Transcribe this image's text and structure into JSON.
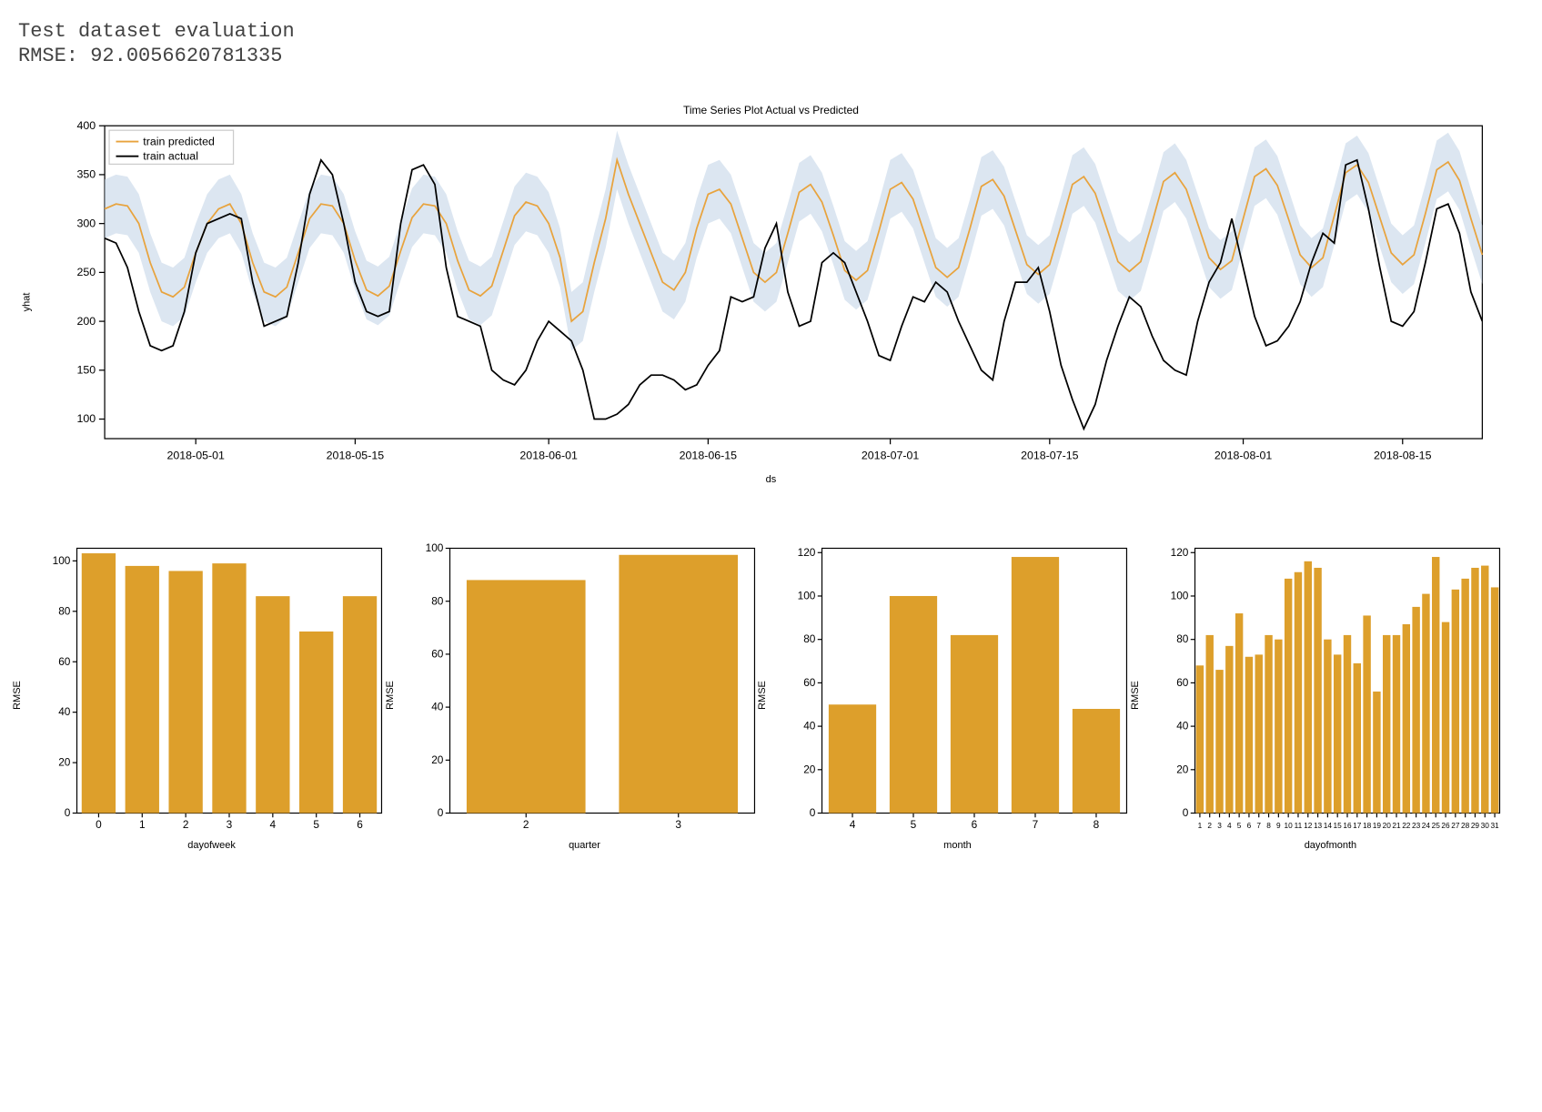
{
  "header": {
    "line1": "Test dataset evaluation",
    "line2": "RMSE: 92.0056620781335",
    "fontsize": 22,
    "color": "#424242"
  },
  "colors": {
    "predicted_line": "#e8a33d",
    "actual_line": "#000000",
    "confidence_fill": "#c5d6e8",
    "confidence_opacity": 0.6,
    "bar_fill": "#dd9f2b",
    "plot_border": "#000000",
    "tick_color": "#000000",
    "background": "#ffffff",
    "legend_border": "#cccccc",
    "legend_bg": "#ffffff"
  },
  "fonts": {
    "title_size": 12,
    "axis_label_size": 11,
    "tick_size": 10,
    "legend_size": 10,
    "axis_weight": "normal"
  },
  "main_chart": {
    "type": "line",
    "title": "Time Series Plot Actual vs Predicted",
    "xlabel": "ds",
    "ylabel": "yhat",
    "ylim": [
      80,
      400
    ],
    "ytick_step": 50,
    "yticks": [
      100,
      150,
      200,
      250,
      300,
      350,
      400
    ],
    "xtick_labels": [
      "2018-05-01",
      "2018-05-15",
      "2018-06-01",
      "2018-06-15",
      "2018-07-01",
      "2018-07-15",
      "2018-08-01",
      "2018-08-15"
    ],
    "xtick_positions": [
      8,
      22,
      39,
      53,
      69,
      83,
      100,
      114
    ],
    "n_points": 122,
    "legend": {
      "items": [
        "train predicted",
        "train actual"
      ],
      "position": "upper-left"
    },
    "predicted": [
      315,
      320,
      318,
      300,
      260,
      230,
      225,
      235,
      270,
      300,
      315,
      320,
      300,
      260,
      230,
      225,
      235,
      270,
      305,
      320,
      318,
      300,
      262,
      232,
      226,
      236,
      272,
      306,
      320,
      318,
      300,
      262,
      232,
      226,
      236,
      272,
      308,
      322,
      318,
      300,
      265,
      200,
      210,
      260,
      305,
      365,
      330,
      300,
      270,
      240,
      232,
      250,
      295,
      330,
      335,
      320,
      285,
      250,
      240,
      250,
      290,
      332,
      340,
      322,
      288,
      252,
      242,
      252,
      292,
      335,
      342,
      325,
      290,
      255,
      245,
      255,
      295,
      338,
      345,
      328,
      293,
      258,
      248,
      258,
      298,
      340,
      348,
      331,
      296,
      261,
      251,
      261,
      301,
      343,
      352,
      335,
      300,
      265,
      253,
      262,
      305,
      348,
      356,
      339,
      304,
      268,
      255,
      265,
      308,
      352,
      360,
      342,
      306,
      270,
      258,
      268,
      310,
      355,
      363,
      344,
      305,
      268
    ],
    "conf_upper": [
      345,
      350,
      348,
      330,
      290,
      260,
      255,
      265,
      300,
      330,
      345,
      350,
      330,
      290,
      260,
      255,
      265,
      300,
      335,
      350,
      348,
      330,
      292,
      262,
      256,
      266,
      302,
      336,
      350,
      348,
      330,
      292,
      262,
      256,
      266,
      302,
      338,
      352,
      348,
      332,
      295,
      230,
      240,
      290,
      335,
      395,
      360,
      330,
      300,
      270,
      262,
      280,
      325,
      360,
      365,
      350,
      315,
      280,
      270,
      280,
      320,
      362,
      370,
      352,
      318,
      282,
      272,
      282,
      322,
      365,
      372,
      355,
      320,
      285,
      275,
      285,
      325,
      368,
      375,
      358,
      323,
      288,
      278,
      288,
      328,
      370,
      378,
      361,
      326,
      291,
      281,
      291,
      331,
      373,
      382,
      365,
      330,
      295,
      283,
      292,
      335,
      378,
      386,
      369,
      334,
      298,
      285,
      295,
      338,
      382,
      390,
      372,
      336,
      300,
      288,
      298,
      340,
      385,
      393,
      374,
      335,
      298
    ],
    "conf_lower": [
      285,
      290,
      288,
      270,
      230,
      200,
      195,
      205,
      240,
      270,
      285,
      290,
      270,
      230,
      200,
      195,
      205,
      240,
      275,
      290,
      288,
      270,
      232,
      202,
      196,
      206,
      242,
      276,
      290,
      288,
      270,
      232,
      202,
      196,
      206,
      242,
      278,
      292,
      288,
      270,
      235,
      170,
      180,
      230,
      275,
      335,
      300,
      270,
      240,
      210,
      202,
      220,
      265,
      300,
      305,
      290,
      255,
      220,
      210,
      220,
      260,
      302,
      310,
      292,
      258,
      222,
      212,
      222,
      262,
      305,
      312,
      295,
      260,
      225,
      215,
      225,
      265,
      308,
      315,
      298,
      263,
      228,
      218,
      228,
      268,
      310,
      318,
      301,
      266,
      231,
      221,
      231,
      271,
      313,
      322,
      305,
      270,
      235,
      223,
      232,
      275,
      318,
      326,
      309,
      274,
      238,
      225,
      235,
      278,
      322,
      330,
      312,
      276,
      240,
      228,
      238,
      280,
      325,
      333,
      314,
      275,
      238
    ],
    "actual": [
      285,
      280,
      255,
      210,
      175,
      170,
      175,
      210,
      270,
      300,
      305,
      310,
      305,
      240,
      195,
      200,
      205,
      260,
      330,
      365,
      350,
      300,
      240,
      210,
      205,
      210,
      300,
      355,
      360,
      340,
      255,
      205,
      200,
      195,
      150,
      140,
      135,
      150,
      180,
      200,
      190,
      180,
      150,
      100,
      100,
      105,
      115,
      135,
      145,
      145,
      140,
      130,
      135,
      155,
      170,
      225,
      220,
      225,
      275,
      300,
      230,
      195,
      200,
      260,
      270,
      260,
      230,
      200,
      165,
      160,
      195,
      225,
      220,
      240,
      230,
      200,
      175,
      150,
      140,
      200,
      240,
      240,
      255,
      210,
      155,
      120,
      90,
      115,
      160,
      195,
      225,
      215,
      185,
      160,
      150,
      145,
      200,
      240,
      260,
      305,
      255,
      205,
      175,
      180,
      195,
      220,
      260,
      290,
      280,
      360,
      365,
      315,
      255,
      200,
      195,
      210,
      260,
      315,
      320,
      290,
      230,
      200
    ],
    "line_width": 1.4
  },
  "sub_charts": [
    {
      "type": "bar",
      "xlabel": "dayofweek",
      "ylabel": "RMSE",
      "ylim": [
        0,
        105
      ],
      "yticks": [
        0,
        20,
        40,
        60,
        80,
        100
      ],
      "categories": [
        "0",
        "1",
        "2",
        "3",
        "4",
        "5",
        "6"
      ],
      "values": [
        103,
        98,
        96,
        99,
        86,
        72,
        86
      ],
      "bar_width": 0.78
    },
    {
      "type": "bar",
      "xlabel": "quarter",
      "ylabel": "RMSE",
      "ylim": [
        0,
        100
      ],
      "yticks": [
        0,
        20,
        40,
        60,
        80,
        100
      ],
      "categories": [
        "2",
        "3"
      ],
      "values": [
        88,
        97.5
      ],
      "bar_width": 0.78
    },
    {
      "type": "bar",
      "xlabel": "month",
      "ylabel": "RMSE",
      "ylim": [
        0,
        122
      ],
      "yticks": [
        0,
        20,
        40,
        60,
        80,
        100,
        120
      ],
      "categories": [
        "4",
        "5",
        "6",
        "7",
        "8"
      ],
      "values": [
        50,
        100,
        82,
        118,
        48
      ],
      "bar_width": 0.78
    },
    {
      "type": "bar",
      "xlabel": "dayofmonth",
      "ylabel": "RMSE",
      "ylim": [
        0,
        122
      ],
      "yticks": [
        0,
        20,
        40,
        60,
        80,
        100,
        120
      ],
      "categories": [
        "1",
        "2",
        "3",
        "4",
        "5",
        "6",
        "7",
        "8",
        "9",
        "10",
        "11",
        "12",
        "13",
        "14",
        "15",
        "16",
        "17",
        "18",
        "19",
        "20",
        "21",
        "22",
        "23",
        "24",
        "25",
        "26",
        "27",
        "28",
        "29",
        "30",
        "31"
      ],
      "values": [
        68,
        82,
        66,
        77,
        92,
        72,
        73,
        82,
        80,
        108,
        111,
        116,
        113,
        80,
        73,
        82,
        69,
        91,
        56,
        82,
        82,
        87,
        95,
        101,
        118,
        88,
        103,
        108,
        113,
        114,
        104
      ],
      "bar_width": 0.78
    }
  ],
  "layout": {
    "main_width": 1240,
    "main_height": 310,
    "sub_width": 298,
    "sub_height": 275,
    "aspect_main": 4.0
  }
}
